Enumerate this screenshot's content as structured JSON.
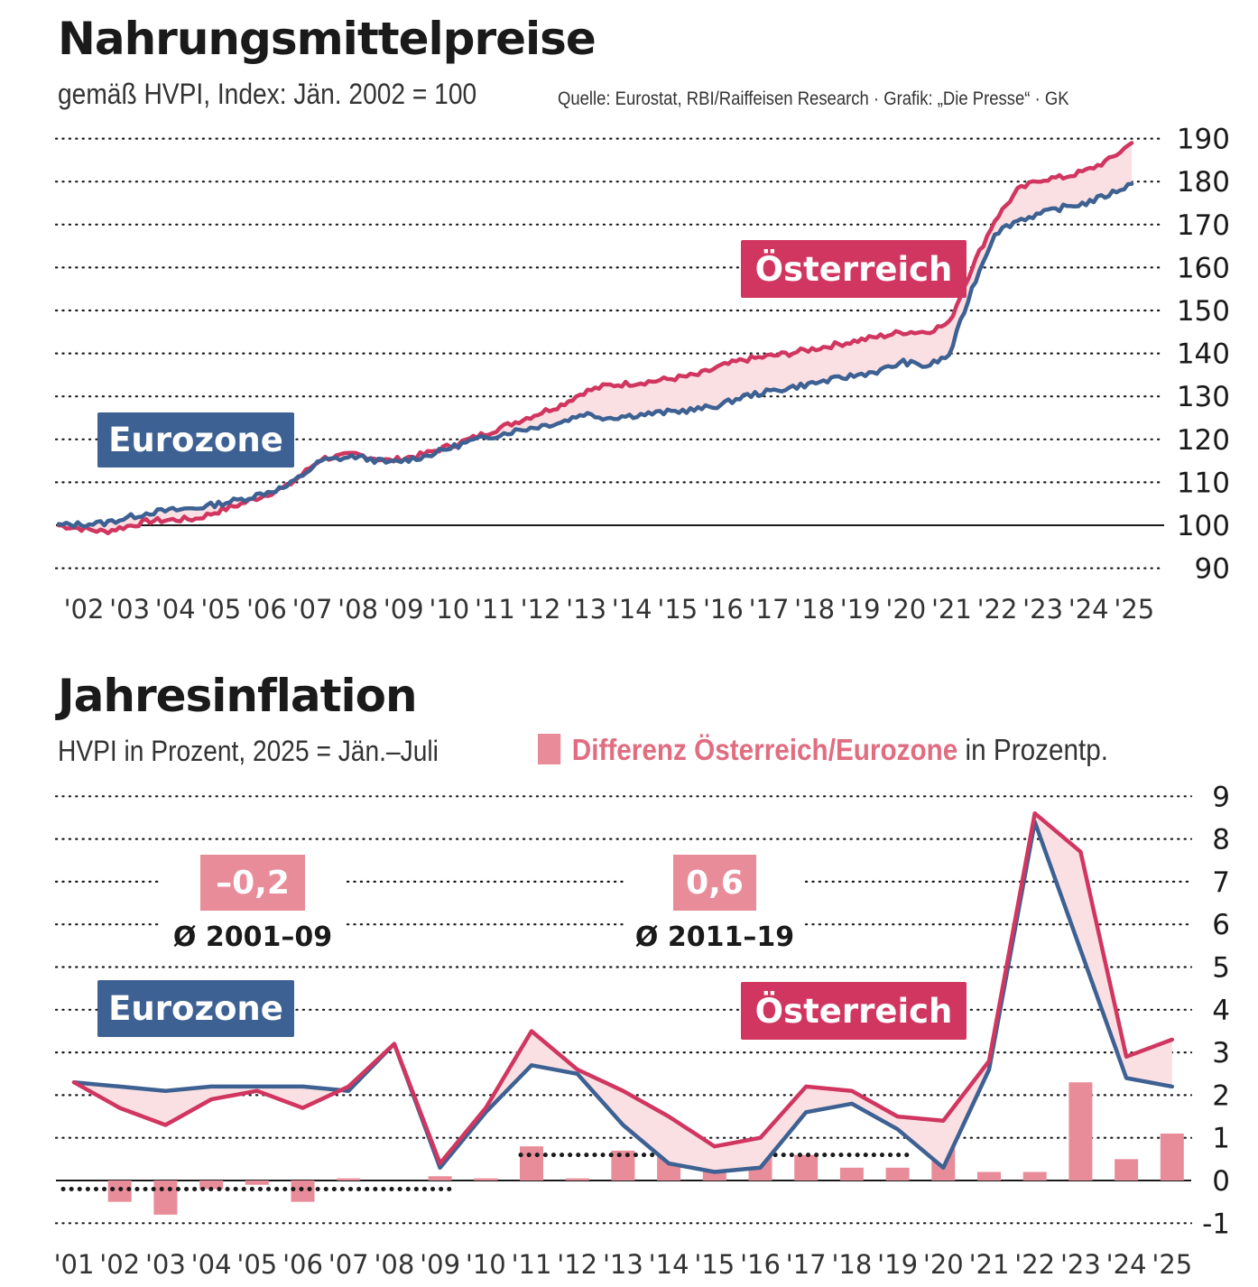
{
  "top": {
    "title": "Nahrungsmittelpreise",
    "subtitle": "gemäß HVPI, Index: Jän. 2002 = 100",
    "source": "Quelle: Eurostat, RBI/Raiffeisen Research · Grafik: „Die Presse“ · GK",
    "label_eurozone": "Eurozone",
    "label_austria": "Österreich"
  },
  "bottom": {
    "title": "Jahresinflation",
    "subtitle": "HVPI in Prozent, 2025 = Jän.–Juli",
    "legend_label": "Differenz Österreich/Eurozone",
    "legend_suffix": "in Prozentp.",
    "label_eurozone": "Eurozone",
    "label_austria": "Österreich",
    "avg1_value": "–0,2",
    "avg1_period": "Ø 2001–09",
    "avg2_value": "0,6",
    "avg2_period": "Ø 2011–19"
  },
  "colors": {
    "austria": "#d03660",
    "eurozone": "#3d6192",
    "difference_fill": "#fbe0e3",
    "bars": "#e98c99",
    "avg_box": "#e98c99"
  },
  "chart_data": [
    {
      "type": "line",
      "title": "Nahrungsmittelpreise",
      "x": [
        2002.0,
        2003.0,
        2004.0,
        2005.0,
        2006.0,
        2007.0,
        2007.75,
        2008.5,
        2009.25,
        2010.0,
        2011.0,
        2012.0,
        2013.0,
        2013.5,
        2014.0,
        2015.0,
        2016.0,
        2016.5,
        2017.0,
        2018.0,
        2019.0,
        2020.0,
        2020.5,
        2021.0,
        2021.5,
        2022.0,
        2022.5,
        2023.0,
        2023.5,
        2024.0,
        2024.5,
        2025.0,
        2025.5
      ],
      "x_ticks": [
        "'02",
        "'03",
        "'04",
        "'05",
        "'06",
        "'07",
        "'08",
        "'09",
        "'10",
        "'11",
        "'12",
        "'13",
        "'14",
        "'15",
        "'16",
        "'17",
        "'18",
        "'19",
        "'20",
        "'21",
        "'22",
        "'23",
        "'24",
        "'25"
      ],
      "y_ticks": [
        90,
        100,
        110,
        120,
        130,
        140,
        150,
        160,
        170,
        180,
        190
      ],
      "ylim": [
        90,
        190
      ],
      "series": [
        {
          "name": "Österreich",
          "values": [
            100.0,
            98.5,
            101.0,
            101.5,
            105.0,
            109.0,
            115.5,
            116.5,
            115.0,
            116.5,
            120.0,
            124.0,
            128.0,
            131.0,
            132.5,
            133.5,
            135.0,
            137.0,
            138.5,
            140.0,
            142.0,
            144.0,
            145.0,
            145.0,
            147.0,
            160.0,
            171.0,
            178.0,
            180.5,
            181.0,
            182.5,
            185.0,
            189.0
          ]
        },
        {
          "name": "Eurozone",
          "values": [
            100.0,
            100.5,
            103.0,
            104.0,
            106.0,
            109.0,
            115.0,
            116.0,
            114.5,
            116.0,
            119.5,
            122.0,
            124.0,
            126.0,
            125.0,
            126.0,
            127.0,
            128.0,
            130.0,
            132.0,
            134.0,
            136.0,
            138.0,
            137.0,
            139.5,
            155.0,
            168.0,
            171.0,
            172.5,
            174.0,
            175.0,
            177.0,
            179.5
          ]
        }
      ]
    },
    {
      "type": "line+bar",
      "title": "Jahresinflation",
      "categories": [
        "'01",
        "'02",
        "'03",
        "'04",
        "'05",
        "'06",
        "'07",
        "'08",
        "'09",
        "'10",
        "'11",
        "'12",
        "'13",
        "'14",
        "'15",
        "'16",
        "'17",
        "'18",
        "'19",
        "'20",
        "'21",
        "'22",
        "'23",
        "'24",
        "'25"
      ],
      "y_ticks": [
        -1,
        0,
        1,
        2,
        3,
        4,
        5,
        6,
        7,
        8,
        9
      ],
      "ylim": [
        -1,
        9
      ],
      "series": [
        {
          "name": "Österreich",
          "values": [
            2.3,
            1.7,
            1.3,
            1.9,
            2.1,
            1.7,
            2.2,
            3.2,
            0.4,
            1.7,
            3.5,
            2.6,
            2.1,
            1.5,
            0.8,
            1.0,
            2.2,
            2.1,
            1.5,
            1.4,
            2.8,
            8.6,
            7.7,
            2.9,
            3.3
          ]
        },
        {
          "name": "Eurozone",
          "values": [
            2.3,
            2.2,
            2.1,
            2.2,
            2.2,
            2.2,
            2.1,
            3.2,
            0.3,
            1.6,
            2.7,
            2.5,
            1.3,
            0.4,
            0.2,
            0.3,
            1.6,
            1.8,
            1.2,
            0.3,
            2.6,
            8.4,
            5.4,
            2.4,
            2.2
          ]
        },
        {
          "name": "Differenz Österreich/Eurozone",
          "type": "bar",
          "values": [
            0.0,
            -0.5,
            -0.8,
            -0.2,
            -0.1,
            -0.5,
            0.05,
            0.0,
            0.1,
            0.05,
            0.8,
            0.05,
            0.7,
            1.0,
            0.6,
            0.7,
            0.6,
            0.3,
            0.3,
            1.1,
            0.2,
            0.2,
            2.3,
            0.5,
            1.1
          ]
        }
      ],
      "averages": [
        {
          "value": -0.2,
          "label": "Ø 2001–09",
          "from": "'01",
          "to": "'09"
        },
        {
          "value": 0.6,
          "label": "Ø 2011–19",
          "from": "'11",
          "to": "'19"
        }
      ]
    }
  ]
}
